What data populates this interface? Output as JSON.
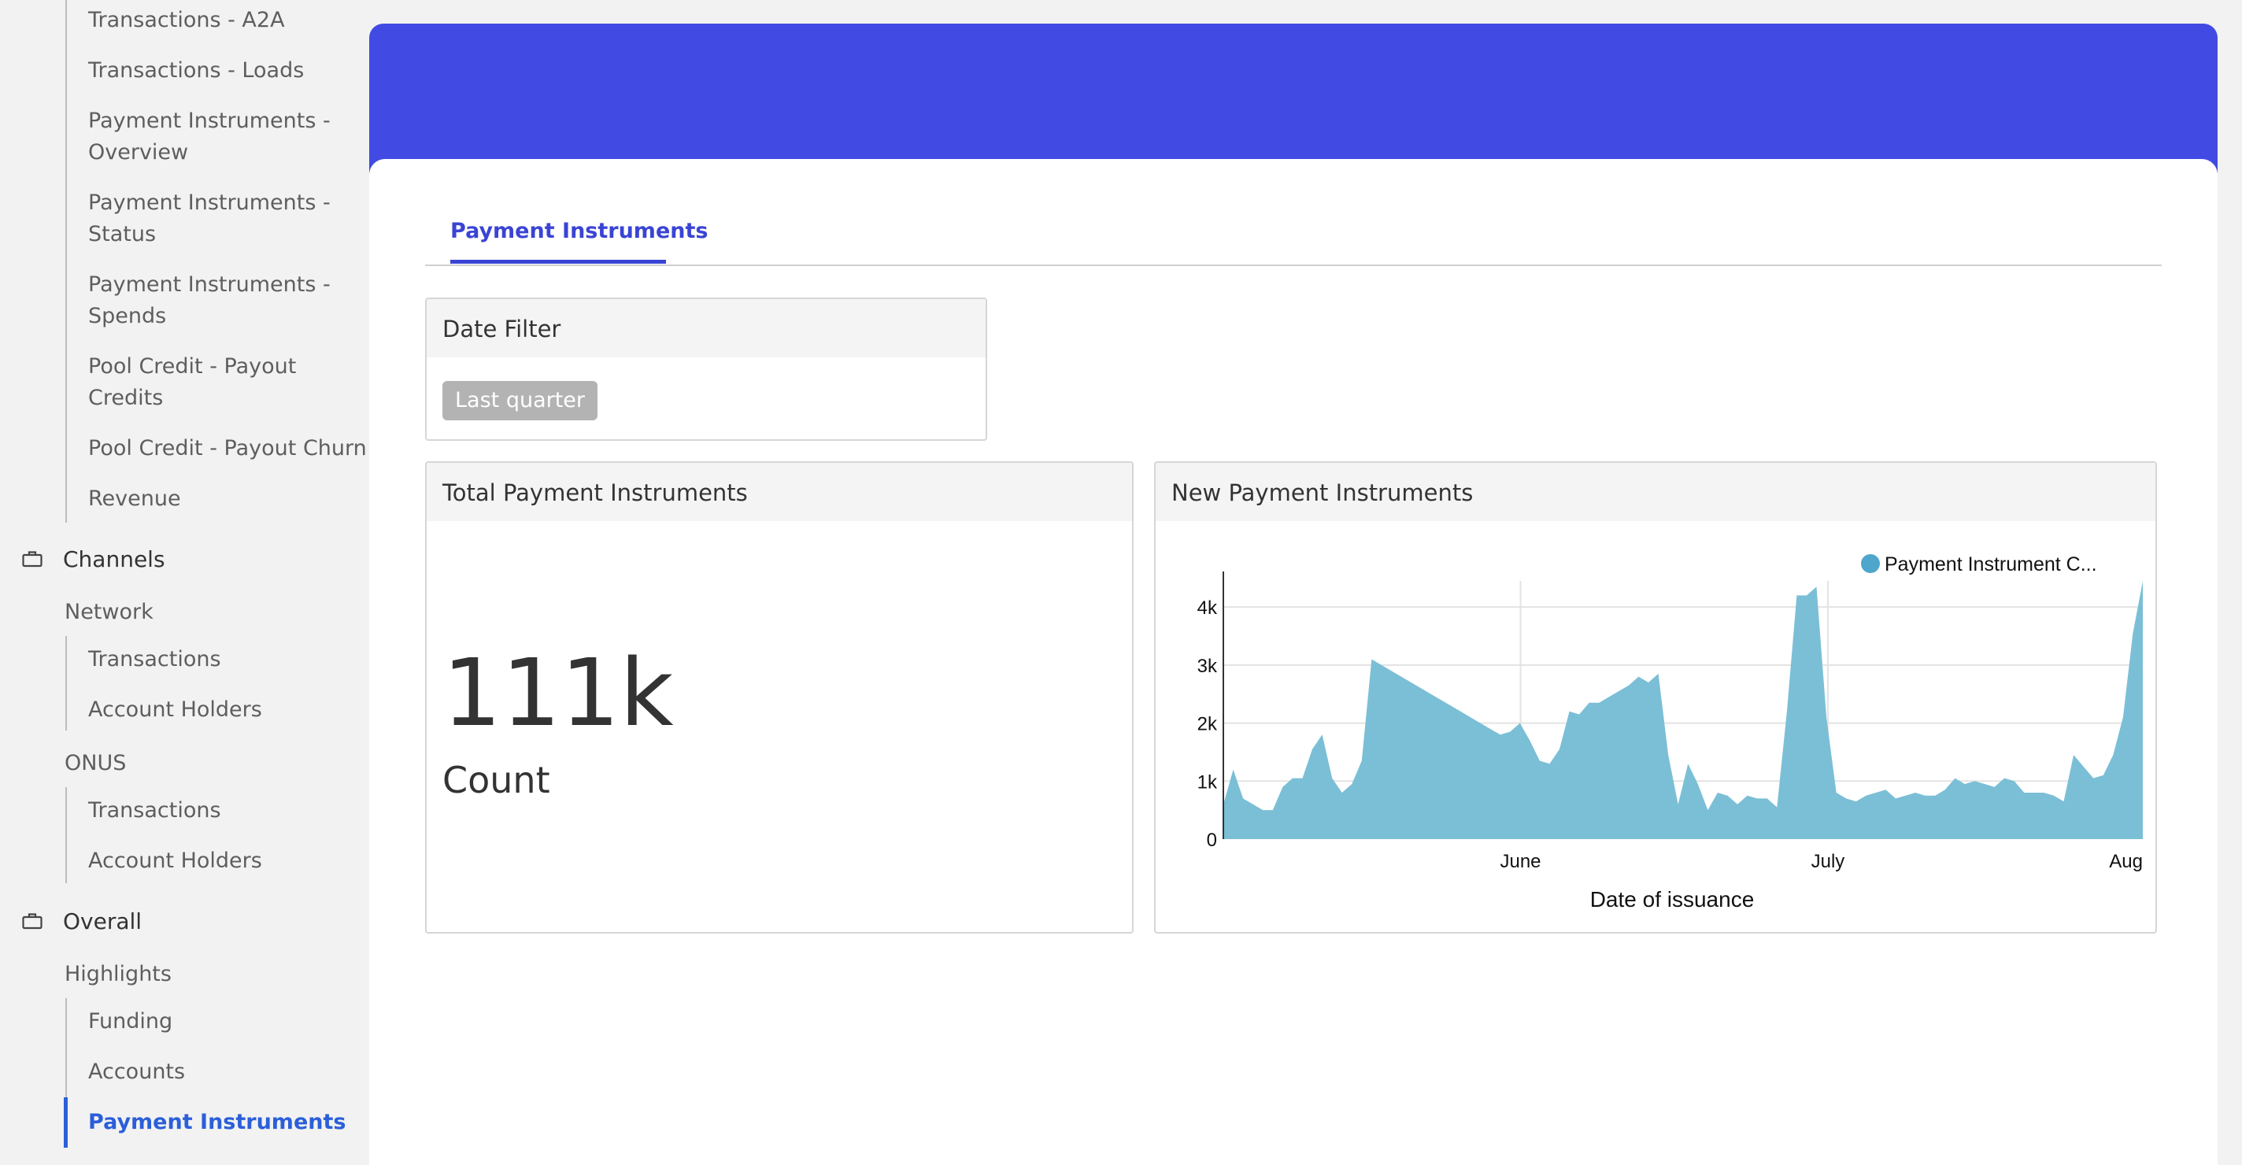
{
  "sidebar": {
    "top_items": [
      "Transactions - A2A",
      "Transactions - Loads",
      "Payment Instruments - Overview",
      "Payment Instruments - Status",
      "Payment Instruments - Spends",
      "Pool Credit - Payout Credits",
      "Pool Credit - Payout Churn",
      "Revenue"
    ],
    "channels": {
      "label": "Channels",
      "icon": "briefcase-icon",
      "network": {
        "label": "Network",
        "items": [
          "Transactions",
          "Account Holders"
        ]
      },
      "onus": {
        "label": "ONUS",
        "items": [
          "Transactions",
          "Account Holders"
        ]
      }
    },
    "overall": {
      "label": "Overall",
      "icon": "briefcase-icon",
      "highlights": {
        "label": "Highlights",
        "items": [
          "Funding",
          "Accounts",
          "Payment Instruments"
        ],
        "active": "Payment Instruments"
      }
    }
  },
  "tabs": [
    {
      "label": "Payment Instruments",
      "active": true
    }
  ],
  "date_filter": {
    "title": "Date Filter",
    "value": "Last quarter"
  },
  "total_panel": {
    "title": "Total Payment Instruments",
    "value": "111k",
    "label": "Count"
  },
  "new_panel": {
    "title": "New Payment Instruments"
  },
  "colors": {
    "accent": "#414be3",
    "tab": "#3a44d4",
    "active_nav": "#2b5fd9",
    "area": "#7bbfd6",
    "legend_dot": "#4ea6cc"
  },
  "chart_data": {
    "type": "area",
    "xlabel": "Date of issuance",
    "ylabel": "",
    "legend": {
      "placement": "top-right",
      "entries": [
        "Payment Instrument C..."
      ]
    },
    "series": [
      {
        "name": "Payment Instrument C...",
        "values": [
          600,
          1200,
          700,
          600,
          500,
          500,
          900,
          1050,
          1050,
          1550,
          1800,
          1050,
          800,
          950,
          1350,
          3100,
          3000,
          2900,
          2800,
          2700,
          2600,
          2500,
          2400,
          2300,
          2200,
          2100,
          2000,
          1900,
          1800,
          1850,
          2000,
          1700,
          1350,
          1300,
          1550,
          2200,
          2150,
          2350,
          2350,
          2450,
          2550,
          2650,
          2800,
          2700,
          2850,
          1450,
          600,
          1300,
          950,
          500,
          800,
          750,
          600,
          750,
          700,
          700,
          550,
          2200,
          4200,
          4200,
          4350,
          2100,
          800,
          700,
          650,
          750,
          800,
          850,
          700,
          750,
          800,
          750,
          750,
          850,
          1050,
          950,
          1000,
          950,
          900,
          1050,
          1000,
          800,
          800,
          800,
          750,
          650,
          1450,
          1250,
          1050,
          1100,
          1450,
          2100,
          3550,
          4450
        ]
      }
    ],
    "x_ticks": [
      "June",
      "July",
      "Aug"
    ],
    "y_ticks": [
      "0",
      "1k",
      "2k",
      "3k",
      "4k"
    ],
    "ylim": [
      0,
      4450
    ],
    "grid": true
  }
}
